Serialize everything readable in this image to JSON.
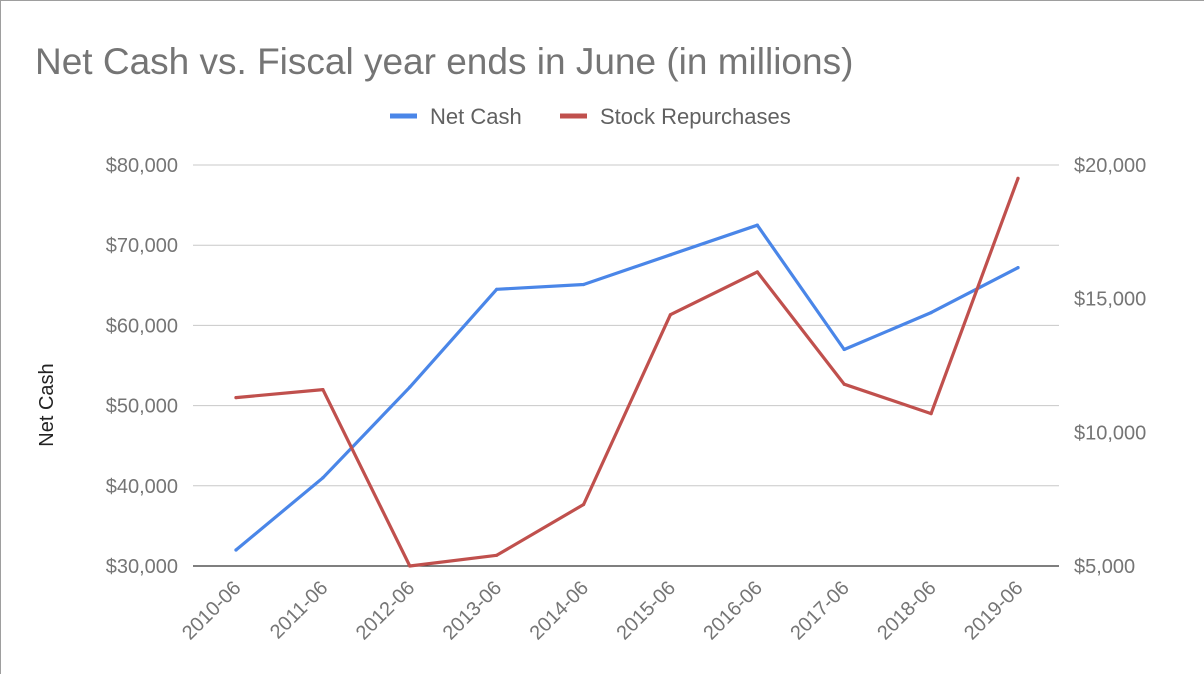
{
  "chart_data": {
    "type": "line",
    "title": "Net Cash vs. Fiscal year ends in June (in millions)",
    "categories": [
      "2010-06",
      "2011-06",
      "2012-06",
      "2013-06",
      "2014-06",
      "2015-06",
      "2016-06",
      "2017-06",
      "2018-06",
      "2019-06"
    ],
    "series": [
      {
        "name": "Net Cash",
        "axis": "left",
        "color": "#4a86e8",
        "values": [
          32000,
          41000,
          52300,
          64500,
          65100,
          68800,
          72500,
          57000,
          61600,
          67200
        ]
      },
      {
        "name": "Stock Repurchases",
        "axis": "right",
        "color": "#c0504d",
        "values": [
          11300,
          11600,
          5000,
          5400,
          7300,
          14400,
          16000,
          11800,
          10700,
          19500
        ]
      }
    ],
    "left_axis": {
      "label": "Net Cash",
      "range": [
        30000,
        80000
      ],
      "ticks": [
        30000,
        40000,
        50000,
        60000,
        70000,
        80000
      ],
      "tick_labels": [
        "$30,000",
        "$40,000",
        "$50,000",
        "$60,000",
        "$70,000",
        "$80,000"
      ]
    },
    "right_axis": {
      "label": "",
      "range": [
        5000,
        20000
      ],
      "ticks": [
        5000,
        10000,
        15000,
        20000
      ],
      "tick_labels": [
        "$5,000",
        "$10,000",
        "$15,000",
        "$20,000"
      ]
    },
    "legend_position": "top-center",
    "grid": true
  }
}
